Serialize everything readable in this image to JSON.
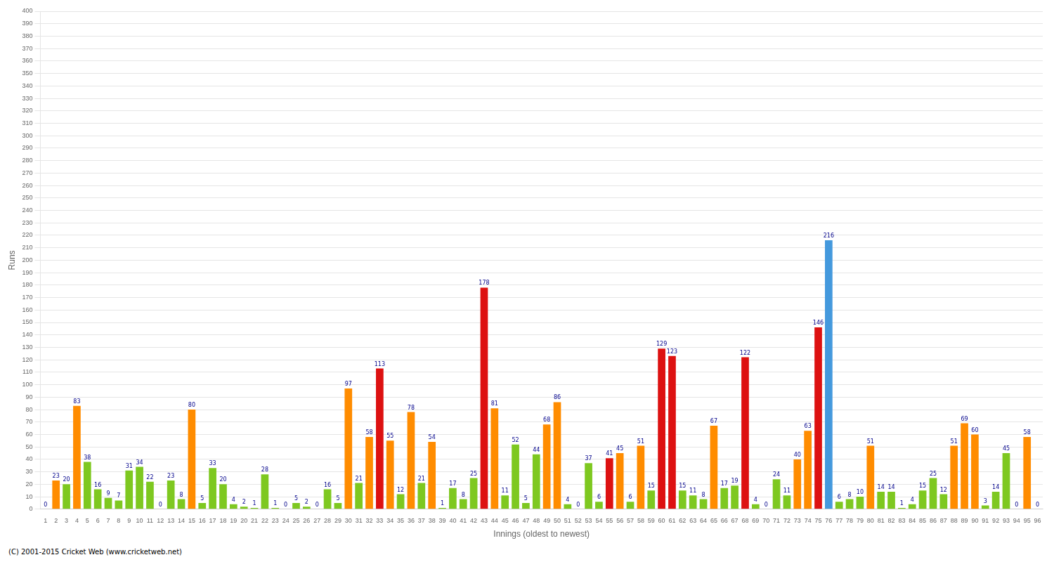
{
  "chart_data": {
    "type": "bar",
    "xlabel": "Innings (oldest to newest)",
    "ylabel": "Runs",
    "footer": "(C) 2001-2015 Cricket Web (www.cricketweb.net)",
    "categories": [
      "1",
      "2",
      "3",
      "4",
      "5",
      "6",
      "7",
      "8",
      "9",
      "10",
      "11",
      "12",
      "13",
      "14",
      "15",
      "16",
      "17",
      "18",
      "19",
      "20",
      "21",
      "22",
      "23",
      "24",
      "25",
      "26",
      "27",
      "28",
      "29",
      "30",
      "31",
      "32",
      "33",
      "34",
      "35",
      "36",
      "37",
      "38",
      "39",
      "40",
      "41",
      "42",
      "43",
      "44",
      "45",
      "46",
      "47",
      "48",
      "49",
      "50",
      "51",
      "52",
      "53",
      "54",
      "55",
      "56",
      "57",
      "58",
      "59",
      "60",
      "61",
      "62",
      "63",
      "64",
      "65",
      "66",
      "67",
      "68",
      "69",
      "70",
      "71",
      "72",
      "73",
      "74",
      "75",
      "76",
      "77",
      "78",
      "79",
      "80",
      "81",
      "82",
      "83",
      "84",
      "85",
      "86",
      "87",
      "88",
      "89",
      "90",
      "91",
      "92",
      "93",
      "94",
      "95",
      "96"
    ],
    "values": [
      0,
      23,
      20,
      83,
      38,
      16,
      9,
      7,
      31,
      34,
      22,
      0,
      23,
      8,
      80,
      5,
      33,
      20,
      4,
      2,
      1,
      28,
      1,
      0,
      5,
      2,
      0,
      16,
      5,
      97,
      21,
      58,
      113,
      55,
      12,
      78,
      21,
      54,
      1,
      17,
      8,
      25,
      178,
      81,
      11,
      52,
      5,
      44,
      68,
      86,
      4,
      0,
      37,
      6,
      41,
      45,
      6,
      51,
      15,
      129,
      123,
      15,
      11,
      8,
      67,
      17,
      19,
      122,
      4,
      0,
      24,
      11,
      40,
      63,
      146,
      216,
      6,
      8,
      10,
      51,
      14,
      14,
      1,
      4,
      15,
      25,
      12,
      51,
      69,
      60,
      3,
      14,
      45,
      0,
      58,
      0
    ],
    "colors": [
      "#7ec820",
      "#ff8c00",
      "#7ec820",
      "#ff8c00",
      "#7ec820",
      "#7ec820",
      "#7ec820",
      "#7ec820",
      "#7ec820",
      "#7ec820",
      "#7ec820",
      "#7ec820",
      "#7ec820",
      "#7ec820",
      "#ff8c00",
      "#7ec820",
      "#7ec820",
      "#7ec820",
      "#7ec820",
      "#7ec820",
      "#7ec820",
      "#7ec820",
      "#7ec820",
      "#7ec820",
      "#7ec820",
      "#7ec820",
      "#7ec820",
      "#7ec820",
      "#7ec820",
      "#ff8c00",
      "#7ec820",
      "#ff8c00",
      "#dd1111",
      "#ff8c00",
      "#7ec820",
      "#ff8c00",
      "#7ec820",
      "#ff8c00",
      "#7ec820",
      "#7ec820",
      "#7ec820",
      "#7ec820",
      "#dd1111",
      "#ff8c00",
      "#7ec820",
      "#7ec820",
      "#7ec820",
      "#7ec820",
      "#ff8c00",
      "#ff8c00",
      "#7ec820",
      "#7ec820",
      "#7ec820",
      "#7ec820",
      "#dd1111",
      "#ff8c00",
      "#7ec820",
      "#ff8c00",
      "#7ec820",
      "#dd1111",
      "#dd1111",
      "#7ec820",
      "#7ec820",
      "#7ec820",
      "#ff8c00",
      "#7ec820",
      "#7ec820",
      "#dd1111",
      "#7ec820",
      "#7ec820",
      "#7ec820",
      "#7ec820",
      "#ff8c00",
      "#ff8c00",
      "#dd1111",
      "#4499dd",
      "#7ec820",
      "#7ec820",
      "#7ec820",
      "#ff8c00",
      "#7ec820",
      "#7ec820",
      "#7ec820",
      "#7ec820",
      "#7ec820",
      "#7ec820",
      "#7ec820",
      "#ff8c00",
      "#ff8c00",
      "#ff8c00",
      "#7ec820",
      "#7ec820",
      "#7ec820",
      "#7ec820",
      "#ff8c00",
      "#7ec820"
    ],
    "ylim": [
      0,
      400
    ],
    "yticks": [
      0,
      10,
      20,
      30,
      40,
      50,
      60,
      70,
      80,
      90,
      100,
      110,
      120,
      130,
      140,
      150,
      160,
      170,
      180,
      190,
      200,
      210,
      220,
      230,
      240,
      250,
      260,
      270,
      280,
      290,
      300,
      310,
      320,
      330,
      340,
      350,
      360,
      370,
      380,
      390,
      400
    ],
    "grid": true,
    "data_labels": true
  }
}
